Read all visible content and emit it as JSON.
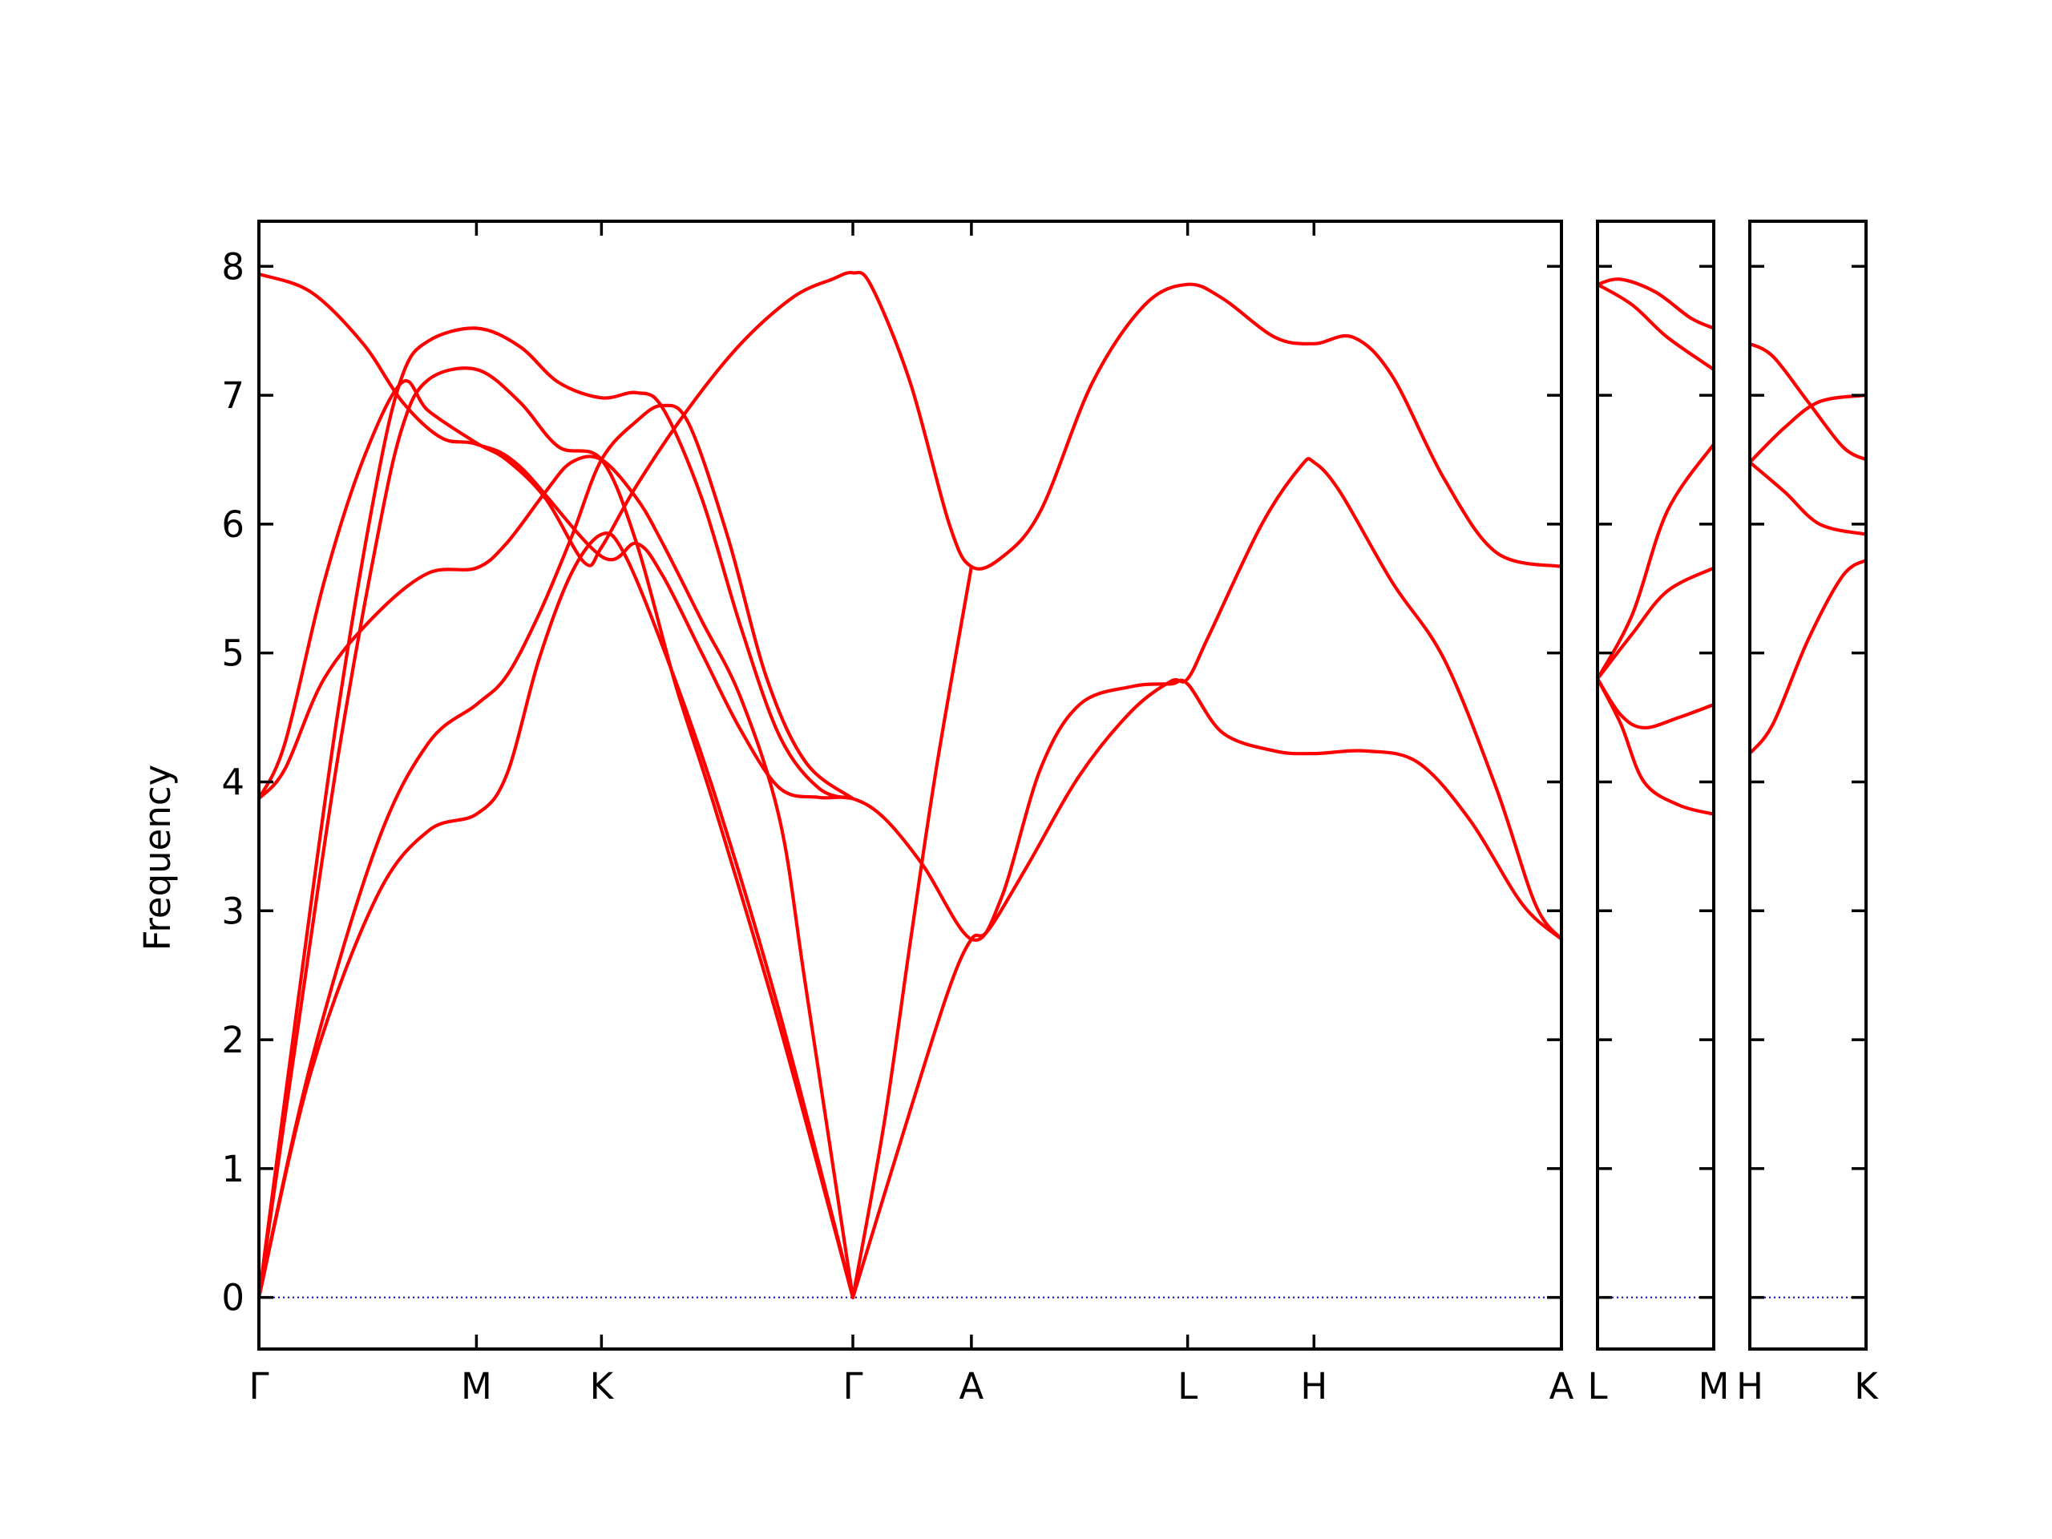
{
  "chart_data": {
    "type": "line",
    "title": "",
    "ylabel": "Frequency",
    "ylim": [
      -0.4,
      8.35
    ],
    "yticks": [
      0,
      1,
      2,
      3,
      4,
      5,
      6,
      7,
      8
    ],
    "grid": false,
    "legend": "none",
    "colors": {
      "band": "#ff0000",
      "zero_line": "#0000cc",
      "frame": "#000000"
    },
    "panels": [
      {
        "name": "Γ-M-K-Γ-A-L-H-A",
        "x_range": [
          0,
          1.0
        ],
        "ticks": [
          {
            "x": 0.0,
            "label": "Γ"
          },
          {
            "x": 0.167,
            "label": "M"
          },
          {
            "x": 0.263,
            "label": "K"
          },
          {
            "x": 0.456,
            "label": "Γ"
          },
          {
            "x": 0.547,
            "label": "A"
          },
          {
            "x": 0.713,
            "label": "L"
          },
          {
            "x": 0.81,
            "label": "H"
          },
          {
            "x": 1.0,
            "label": "A"
          }
        ],
        "bands": [
          [
            [
              0,
              0
            ],
            [
              0.04,
              1.75
            ],
            [
              0.09,
              3.1
            ],
            [
              0.13,
              3.62
            ],
            [
              0.167,
              3.75
            ],
            [
              0.19,
              4.05
            ],
            [
              0.215,
              4.95
            ],
            [
              0.24,
              5.62
            ],
            [
              0.263,
              5.92
            ],
            [
              0.28,
              5.78
            ],
            [
              0.31,
              5.05
            ],
            [
              0.35,
              3.9
            ],
            [
              0.4,
              2.2
            ],
            [
              0.456,
              0
            ]
          ],
          [
            [
              0,
              0
            ],
            [
              0.04,
              1.82
            ],
            [
              0.09,
              3.5
            ],
            [
              0.13,
              4.3
            ],
            [
              0.167,
              4.6
            ],
            [
              0.19,
              4.82
            ],
            [
              0.215,
              5.3
            ],
            [
              0.24,
              5.9
            ],
            [
              0.263,
              6.5
            ],
            [
              0.29,
              6.8
            ],
            [
              0.31,
              6.92
            ],
            [
              0.33,
              6.78
            ],
            [
              0.36,
              5.9
            ],
            [
              0.39,
              4.8
            ],
            [
              0.42,
              4.15
            ],
            [
              0.456,
              3.87
            ]
          ],
          [
            [
              0,
              0
            ],
            [
              0.03,
              2.1
            ],
            [
              0.06,
              4.15
            ],
            [
              0.09,
              5.85
            ],
            [
              0.11,
              6.75
            ],
            [
              0.13,
              7.12
            ],
            [
              0.167,
              7.2
            ],
            [
              0.2,
              6.95
            ],
            [
              0.23,
              6.6
            ],
            [
              0.263,
              6.5
            ],
            [
              0.29,
              5.85
            ],
            [
              0.32,
              4.75
            ],
            [
              0.35,
              3.8
            ],
            [
              0.4,
              2.1
            ],
            [
              0.456,
              0
            ]
          ],
          [
            [
              0,
              0
            ],
            [
              0.03,
              2.3
            ],
            [
              0.06,
              4.5
            ],
            [
              0.09,
              6.3
            ],
            [
              0.11,
              7.15
            ],
            [
              0.13,
              7.42
            ],
            [
              0.167,
              7.52
            ],
            [
              0.2,
              7.38
            ],
            [
              0.23,
              7.1
            ],
            [
              0.263,
              6.98
            ],
            [
              0.29,
              7.02
            ],
            [
              0.31,
              6.9
            ],
            [
              0.34,
              6.2
            ],
            [
              0.37,
              5.2
            ],
            [
              0.4,
              4.35
            ],
            [
              0.43,
              3.95
            ],
            [
              0.456,
              3.87
            ]
          ],
          [
            [
              0,
              3.87
            ],
            [
              0.02,
              4.1
            ],
            [
              0.05,
              4.8
            ],
            [
              0.09,
              5.3
            ],
            [
              0.13,
              5.62
            ],
            [
              0.167,
              5.66
            ],
            [
              0.19,
              5.85
            ],
            [
              0.22,
              6.25
            ],
            [
              0.24,
              6.48
            ],
            [
              0.263,
              6.5
            ],
            [
              0.29,
              6.2
            ],
            [
              0.31,
              5.85
            ],
            [
              0.34,
              5.25
            ],
            [
              0.37,
              4.65
            ],
            [
              0.4,
              3.7
            ],
            [
              0.42,
              2.4
            ],
            [
              0.456,
              0
            ]
          ],
          [
            [
              0,
              3.87
            ],
            [
              0.02,
              4.3
            ],
            [
              0.05,
              5.55
            ],
            [
              0.08,
              6.5
            ],
            [
              0.11,
              7.1
            ],
            [
              0.13,
              6.88
            ],
            [
              0.167,
              6.63
            ],
            [
              0.19,
              6.5
            ],
            [
              0.22,
              6.2
            ],
            [
              0.25,
              5.7
            ],
            [
              0.263,
              5.82
            ],
            [
              0.29,
              6.3
            ],
            [
              0.33,
              6.9
            ],
            [
              0.37,
              7.4
            ],
            [
              0.41,
              7.76
            ],
            [
              0.44,
              7.9
            ],
            [
              0.456,
              7.95
            ],
            [
              0.47,
              7.85
            ],
            [
              0.5,
              7.1
            ],
            [
              0.53,
              6.0
            ],
            [
              0.547,
              5.67
            ],
            [
              0.57,
              5.74
            ],
            [
              0.6,
              6.1
            ],
            [
              0.64,
              7.1
            ],
            [
              0.68,
              7.7
            ],
            [
              0.713,
              7.86
            ],
            [
              0.74,
              7.75
            ],
            [
              0.78,
              7.45
            ],
            [
              0.81,
              7.4
            ],
            [
              0.84,
              7.45
            ],
            [
              0.87,
              7.15
            ],
            [
              0.91,
              6.35
            ],
            [
              0.95,
              5.78
            ],
            [
              1.0,
              5.67
            ]
          ],
          [
            [
              0,
              7.94
            ],
            [
              0.04,
              7.8
            ],
            [
              0.08,
              7.4
            ],
            [
              0.11,
              6.95
            ],
            [
              0.14,
              6.67
            ],
            [
              0.167,
              6.62
            ],
            [
              0.2,
              6.45
            ],
            [
              0.263,
              5.75
            ],
            [
              0.29,
              5.85
            ],
            [
              0.31,
              5.6
            ],
            [
              0.34,
              5.0
            ],
            [
              0.37,
              4.4
            ],
            [
              0.4,
              3.95
            ],
            [
              0.43,
              3.88
            ],
            [
              0.456,
              3.87
            ],
            [
              0.48,
              3.72
            ],
            [
              0.51,
              3.35
            ],
            [
              0.547,
              2.78
            ],
            [
              0.57,
              3.1
            ],
            [
              0.6,
              4.1
            ],
            [
              0.63,
              4.6
            ],
            [
              0.67,
              4.74
            ],
            [
              0.7,
              4.76
            ],
            [
              0.713,
              4.76
            ],
            [
              0.74,
              4.38
            ],
            [
              0.78,
              4.24
            ],
            [
              0.81,
              4.22
            ],
            [
              0.85,
              4.24
            ],
            [
              0.89,
              4.15
            ],
            [
              0.93,
              3.7
            ],
            [
              0.97,
              3.05
            ],
            [
              1.0,
              2.78
            ]
          ],
          [
            [
              0.456,
              0
            ],
            [
              0.5,
              1.45
            ],
            [
              0.53,
              2.4
            ],
            [
              0.547,
              2.78
            ],
            [
              0.56,
              2.85
            ],
            [
              0.59,
              3.35
            ],
            [
              0.63,
              4.05
            ],
            [
              0.67,
              4.55
            ],
            [
              0.7,
              4.78
            ],
            [
              0.713,
              4.8
            ],
            [
              0.73,
              5.15
            ],
            [
              0.77,
              6.0
            ],
            [
              0.8,
              6.45
            ],
            [
              0.81,
              6.48
            ],
            [
              0.83,
              6.25
            ],
            [
              0.87,
              5.55
            ],
            [
              0.91,
              4.95
            ],
            [
              0.95,
              3.95
            ],
            [
              0.98,
              3.05
            ],
            [
              1.0,
              2.78
            ]
          ],
          [
            [
              0.456,
              0
            ],
            [
              0.48,
              1.35
            ],
            [
              0.5,
              2.75
            ],
            [
              0.52,
              4.1
            ],
            [
              0.547,
              5.67
            ]
          ]
        ]
      },
      {
        "name": "L-M",
        "x_range": [
          0,
          1.0
        ],
        "ticks": [
          {
            "x": 0.0,
            "label": "L"
          },
          {
            "x": 1.0,
            "label": "M"
          }
        ],
        "bands": [
          [
            [
              0,
              4.8
            ],
            [
              0.2,
              4.45
            ],
            [
              0.4,
              4.0
            ],
            [
              0.7,
              3.82
            ],
            [
              1.0,
              3.75
            ]
          ],
          [
            [
              0,
              4.8
            ],
            [
              0.2,
              4.52
            ],
            [
              0.4,
              4.42
            ],
            [
              0.7,
              4.5
            ],
            [
              1.0,
              4.6
            ]
          ],
          [
            [
              0,
              4.8
            ],
            [
              0.3,
              5.15
            ],
            [
              0.6,
              5.48
            ],
            [
              1.0,
              5.66
            ]
          ],
          [
            [
              0,
              4.8
            ],
            [
              0.3,
              5.3
            ],
            [
              0.6,
              6.1
            ],
            [
              1.0,
              6.62
            ]
          ],
          [
            [
              0,
              7.86
            ],
            [
              0.3,
              7.7
            ],
            [
              0.6,
              7.45
            ],
            [
              1.0,
              7.2
            ]
          ],
          [
            [
              0,
              7.86
            ],
            [
              0.2,
              7.9
            ],
            [
              0.5,
              7.8
            ],
            [
              0.8,
              7.6
            ],
            [
              1.0,
              7.52
            ]
          ]
        ]
      },
      {
        "name": "H-K",
        "x_range": [
          0,
          1.0
        ],
        "ticks": [
          {
            "x": 0.0,
            "label": "H"
          },
          {
            "x": 1.0,
            "label": "K"
          }
        ],
        "bands": [
          [
            [
              0,
              4.22
            ],
            [
              0.2,
              4.45
            ],
            [
              0.5,
              5.1
            ],
            [
              0.8,
              5.6
            ],
            [
              1.0,
              5.72
            ]
          ],
          [
            [
              0,
              6.48
            ],
            [
              0.3,
              6.25
            ],
            [
              0.6,
              6.0
            ],
            [
              1.0,
              5.92
            ]
          ],
          [
            [
              0,
              6.48
            ],
            [
              0.3,
              6.75
            ],
            [
              0.6,
              6.95
            ],
            [
              1.0,
              7.0
            ]
          ],
          [
            [
              0,
              7.4
            ],
            [
              0.2,
              7.3
            ],
            [
              0.5,
              6.95
            ],
            [
              0.8,
              6.6
            ],
            [
              1.0,
              6.5
            ]
          ]
        ]
      }
    ]
  }
}
